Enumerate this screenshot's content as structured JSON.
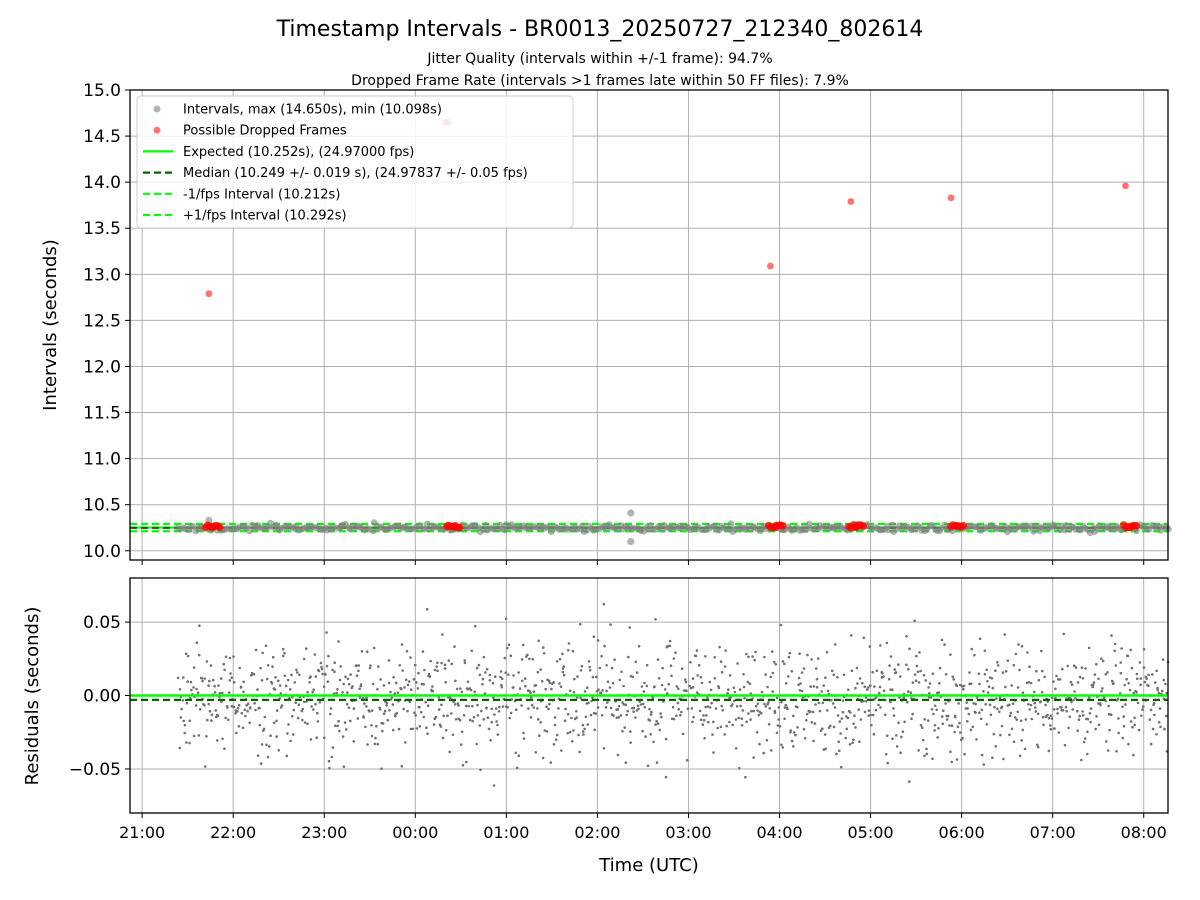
{
  "header": {
    "title": "Timestamp Intervals - BR0013_20250727_212340_802614",
    "subtitle1": "Jitter Quality (intervals within +/-1 frame): 94.7%",
    "subtitle2": "Dropped Frame Rate (intervals >1 frames late within 50 FF files): 7.9%"
  },
  "colors": {
    "intervals": "#808080",
    "dropped": "#ff0000",
    "expected": "#00ff00",
    "median": "#006400",
    "fps_bounds": "#00ff00",
    "residuals": "#707070",
    "grid": "#b0b0b0"
  },
  "chart_data": [
    {
      "type": "scatter",
      "ylabel": "Intervals (seconds)",
      "xlabel": "",
      "ylim": [
        9.9,
        15.0
      ],
      "xlim": [
        "20:52",
        "08:16"
      ],
      "x_data_range": [
        "21:24",
        "08:16"
      ],
      "yticks": [
        "10.0",
        "10.5",
        "11.0",
        "11.5",
        "12.0",
        "12.5",
        "13.0",
        "13.5",
        "14.0",
        "14.5",
        "15.0"
      ],
      "grid": true,
      "legend_position": "top-left",
      "legend": [
        "Intervals, max (14.650s), min (10.098s)",
        "Possible Dropped Frames",
        "Expected (10.252s), (24.97000 fps)",
        "Median (10.249 +/- 0.019 s), (24.97837 +/- 0.05 fps)",
        "-1/fps Interval (10.212s)",
        "+1/fps Interval (10.292s)"
      ],
      "lines": {
        "expected": 10.252,
        "median": 10.249,
        "minus_fps": 10.212,
        "plus_fps": 10.292
      },
      "intervals_band": {
        "center": 10.249,
        "spread": 0.019
      },
      "interval_outliers": [
        {
          "x": "02:22",
          "y": 10.41
        },
        {
          "x": "02:22",
          "y": 10.1
        },
        {
          "x": "21:44",
          "y": 10.33
        },
        {
          "x": "00:22",
          "y": 14.65
        }
      ],
      "dropped_frames": [
        {
          "x": "21:44",
          "y": 12.79
        },
        {
          "x": "00:20",
          "y": 14.65
        },
        {
          "x": "03:54",
          "y": 13.09
        },
        {
          "x": "04:47",
          "y": 13.79
        },
        {
          "x": "05:53",
          "y": 13.83
        },
        {
          "x": "07:48",
          "y": 13.96
        }
      ],
      "dropped_clusters": [
        "21:44",
        "21:49",
        "00:23",
        "00:27",
        "03:55",
        "04:00",
        "04:48",
        "04:53",
        "05:55",
        "05:59",
        "07:49",
        "07:53"
      ]
    },
    {
      "type": "scatter",
      "ylabel": "Residuals (seconds)",
      "xlabel": "Time (UTC)",
      "ylim": [
        -0.08,
        0.08
      ],
      "xlim": [
        "20:52",
        "08:16"
      ],
      "yticks": [
        "0.05",
        "0.00",
        "−0.05"
      ],
      "xticks": [
        "21:00",
        "22:00",
        "23:00",
        "00:00",
        "01:00",
        "02:00",
        "03:00",
        "04:00",
        "05:00",
        "06:00",
        "07:00",
        "08:00"
      ],
      "grid": true,
      "expected_residual": 0.0,
      "median_residual": -0.003,
      "residual_spread": 0.019
    }
  ]
}
